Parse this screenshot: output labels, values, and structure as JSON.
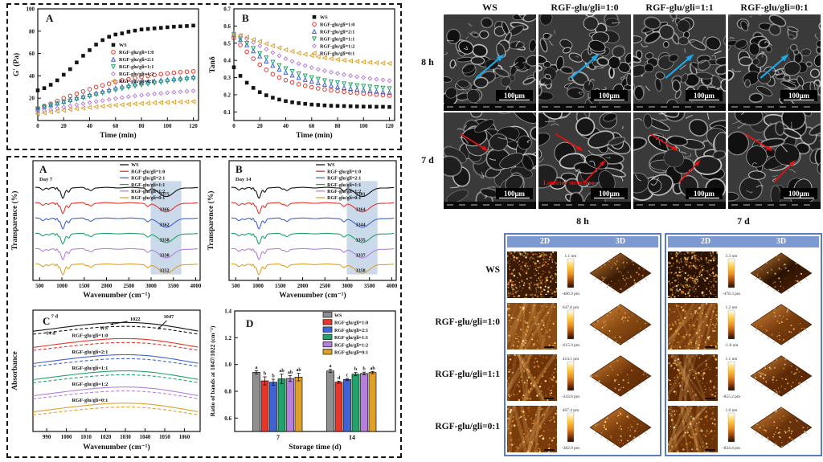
{
  "colors": {
    "ws": "#141414",
    "r10": "#e4362b",
    "r21": "#3f63d2",
    "r11": "#23a36b",
    "r12": "#b77fdc",
    "r01": "#dfa02a",
    "ws_bar": "#8f8f8f",
    "ftir_highlight": "#b9cde4",
    "sem_arrow_8h": "#1ba7e8",
    "sem_arrow_7d": "#e21212",
    "sem_annotation": "#e21212",
    "afm_header_bg": "#7d99d1",
    "afm_border": "#5c7bc0"
  },
  "sem": {
    "col_headers": [
      "WS",
      "RGF-glu/gli=1:0",
      "RGF-glu/gli=1:1",
      "RGF-glu/gli=0:1"
    ],
    "row_labels": [
      "8 h",
      "7 d"
    ],
    "scale_bar_label": "100μm",
    "annotation": "Laminar structure"
  },
  "afm": {
    "group_labels": [
      "8 h",
      "7 d"
    ],
    "col_headers": [
      "2D",
      "3D"
    ],
    "row_labels": [
      "WS",
      "RGF-glu/gli=1:0",
      "RGF-glu/gli=1:1",
      "RGF-glu/gli=0:1"
    ],
    "scales_8h": [
      {
        "top": "1.1 nm",
        "bottom": "-486.9 pm"
      },
      {
        "top": "647.8 pm",
        "bottom": "-615.9 pm"
      },
      {
        "top": "414.1 pm",
        "bottom": "-343.6 pm"
      },
      {
        "top": "407.4 pm",
        "bottom": "-382.9 pm"
      }
    ],
    "scales_7d": [
      {
        "top": "3.3 nm",
        "bottom": "-478.3 pm"
      },
      {
        "top": "1.2 nm",
        "bottom": "-1.8 nm"
      },
      {
        "top": "1.1 nm",
        "bottom": "-855.2 pm"
      },
      {
        "top": "1.0 nm",
        "bottom": "-834.4 pm"
      }
    ]
  },
  "chart_data": [
    {
      "id": "rheoA",
      "type": "scatter",
      "panel_label": "A",
      "xlabel": "Time (min)",
      "ylabel": "G' (Pa)",
      "xlim": [
        0,
        124
      ],
      "ylim": [
        0,
        100
      ],
      "xticks": [
        0,
        20,
        40,
        60,
        80,
        100,
        120
      ],
      "xtick_labels": [
        "0",
        "20",
        "40",
        "60",
        "80",
        "100",
        "120"
      ],
      "yticks": [
        20,
        40,
        60,
        80,
        100
      ],
      "ytick_labels": [
        "20",
        "40",
        "60",
        "80",
        "100"
      ],
      "x_start": 0,
      "x_step": 5,
      "legend": {
        "x": 0.47,
        "y": 0.28
      },
      "series": [
        {
          "name": "WS",
          "marker": "square",
          "colorKey": "ws",
          "values": [
            27,
            29,
            32,
            36,
            41,
            46,
            52,
            58,
            63,
            68,
            72,
            75,
            77,
            78,
            79.5,
            80.5,
            81.5,
            82,
            82.5,
            83,
            83.5,
            84,
            84.3,
            84.6,
            85
          ]
        },
        {
          "name": "RGF-glu/gli=1:0",
          "marker": "circle",
          "colorKey": "r10",
          "values": [
            11,
            13,
            15,
            17.5,
            20,
            22,
            24,
            26,
            28,
            30,
            31.5,
            33,
            34.5,
            36,
            37,
            38,
            39,
            40,
            40.8,
            41.5,
            42.2,
            42.8,
            43.3,
            43.7,
            44
          ]
        },
        {
          "name": "RGF-glu/gli=2:1",
          "marker": "triangle-up",
          "colorKey": "r21",
          "values": [
            11,
            12.5,
            14,
            15.5,
            17,
            18.5,
            20,
            21.5,
            23,
            24.5,
            26,
            27.5,
            29,
            30.3,
            31.5,
            32.6,
            33.6,
            34.5,
            35.3,
            36,
            36.7,
            37.3,
            37.8,
            38.4,
            39
          ]
        },
        {
          "name": "RGF-glu/gli=1:1",
          "marker": "triangle-down",
          "colorKey": "r11",
          "values": [
            10.5,
            12,
            13.4,
            14.8,
            16.2,
            17.6,
            19,
            20.4,
            21.8,
            23.2,
            24.6,
            26,
            27.3,
            28.5,
            29.7,
            30.8,
            31.8,
            32.7,
            33.5,
            34.3,
            35,
            35.7,
            36.3,
            37,
            37.6
          ]
        },
        {
          "name": "RGF-glu/gli=1:2",
          "marker": "diamond",
          "colorKey": "r12",
          "values": [
            8,
            9,
            10,
            11,
            12,
            13,
            14,
            15,
            16,
            17,
            17.9,
            18.8,
            19.7,
            20.5,
            21.3,
            22,
            22.7,
            23.3,
            23.9,
            24.4,
            24.9,
            25.4,
            25.8,
            26.2,
            26.6
          ]
        },
        {
          "name": "RGF-glu/gli=0:1",
          "marker": "triangle-left",
          "colorKey": "r01",
          "values": [
            6,
            6.8,
            7.6,
            8.4,
            9.1,
            9.8,
            10.5,
            11.1,
            11.7,
            12.3,
            12.8,
            13.3,
            13.8,
            14.2,
            14.6,
            15,
            15.3,
            15.6,
            15.9,
            16.1,
            16.3,
            16.5,
            16.7,
            16.8,
            17
          ]
        }
      ]
    },
    {
      "id": "rheoB",
      "type": "scatter",
      "panel_label": "B",
      "xlabel": "Time (min)",
      "ylabel": "Tanδ",
      "xlim": [
        0,
        124
      ],
      "ylim": [
        0.05,
        0.7
      ],
      "xticks": [
        0,
        20,
        40,
        60,
        80,
        100,
        120
      ],
      "xtick_labels": [
        "0",
        "20",
        "40",
        "60",
        "80",
        "100",
        "120"
      ],
      "yticks": [
        0.1,
        0.2,
        0.3,
        0.4,
        0.5,
        0.6,
        0.7
      ],
      "ytick_labels": [
        "0.1",
        "0.2",
        "0.3",
        "0.4",
        "0.5",
        "0.6",
        "0.7"
      ],
      "x_start": 0,
      "x_step": 5,
      "legend": {
        "x": 0.5,
        "y": 0.03
      },
      "series": [
        {
          "name": "WS",
          "marker": "square",
          "colorKey": "ws",
          "values": [
            0.36,
            0.31,
            0.27,
            0.24,
            0.215,
            0.197,
            0.183,
            0.172,
            0.163,
            0.156,
            0.151,
            0.147,
            0.143,
            0.141,
            0.138,
            0.136,
            0.135,
            0.134,
            0.133,
            0.132,
            0.131,
            0.131,
            0.13,
            0.13,
            0.129
          ]
        },
        {
          "name": "RGF-glu/gli=1:0",
          "marker": "circle",
          "colorKey": "r10",
          "values": [
            0.53,
            0.49,
            0.45,
            0.41,
            0.375,
            0.345,
            0.32,
            0.3,
            0.285,
            0.272,
            0.261,
            0.252,
            0.244,
            0.237,
            0.231,
            0.226,
            0.221,
            0.217,
            0.213,
            0.21,
            0.207,
            0.204,
            0.201,
            0.198,
            0.195
          ]
        },
        {
          "name": "RGF-glu/gli=2:1",
          "marker": "triangle-up",
          "colorKey": "r21",
          "values": [
            0.55,
            0.52,
            0.49,
            0.455,
            0.425,
            0.395,
            0.37,
            0.348,
            0.33,
            0.314,
            0.3,
            0.288,
            0.277,
            0.268,
            0.26,
            0.253,
            0.246,
            0.241,
            0.236,
            0.231,
            0.227,
            0.223,
            0.219,
            0.216,
            0.213
          ]
        },
        {
          "name": "RGF-glu/gli=1:1",
          "marker": "triangle-down",
          "colorKey": "r11",
          "values": [
            0.55,
            0.525,
            0.5,
            0.47,
            0.44,
            0.415,
            0.39,
            0.37,
            0.352,
            0.336,
            0.322,
            0.31,
            0.3,
            0.291,
            0.283,
            0.276,
            0.27,
            0.264,
            0.259,
            0.254,
            0.25,
            0.246,
            0.242,
            0.239,
            0.236
          ]
        },
        {
          "name": "RGF-glu/gli=1:2",
          "marker": "diamond",
          "colorKey": "r12",
          "values": [
            0.56,
            0.545,
            0.525,
            0.505,
            0.485,
            0.465,
            0.445,
            0.427,
            0.41,
            0.395,
            0.381,
            0.369,
            0.358,
            0.348,
            0.339,
            0.331,
            0.324,
            0.317,
            0.311,
            0.305,
            0.3,
            0.295,
            0.29,
            0.286,
            0.282
          ]
        },
        {
          "name": "RGF-glu/gli=0:1",
          "marker": "triangle-left",
          "colorKey": "r01",
          "values": [
            0.55,
            0.545,
            0.535,
            0.522,
            0.51,
            0.497,
            0.485,
            0.473,
            0.462,
            0.452,
            0.443,
            0.435,
            0.428,
            0.421,
            0.415,
            0.41,
            0.405,
            0.401,
            0.397,
            0.394,
            0.391,
            0.388,
            0.386,
            0.384,
            0.382
          ]
        }
      ]
    },
    {
      "id": "ftirA",
      "type": "line",
      "panel_label": "A",
      "sub_label": "Day 7",
      "xlabel": "Wavenumber (cm⁻¹)",
      "ylabel": "Transparence (%)",
      "xlim": [
        350,
        4100
      ],
      "xticks": [
        500,
        1000,
        1500,
        2000,
        2500,
        3000,
        3500,
        4000
      ],
      "xtick_labels": [
        "500",
        "1000",
        "1500",
        "2000",
        "2500",
        "3000",
        "3500",
        "4000"
      ],
      "highlight_band": [
        2990,
        3680
      ],
      "series": [
        {
          "name": "WS",
          "colorKey": "ws"
        },
        {
          "name": "RGF-glu/gli=1:0",
          "colorKey": "r10"
        },
        {
          "name": "RGF-glu/gli=2:1",
          "colorKey": "r21"
        },
        {
          "name": "RGF-glu/gli=1:1",
          "colorKey": "r11"
        },
        {
          "name": "RGF-glu/gli=1:2",
          "colorKey": "r12"
        },
        {
          "name": "RGF-glu/gli=0:1",
          "colorKey": "r01"
        }
      ],
      "peak_labels": [
        "3375",
        "3366",
        "3362",
        "3358",
        "3330",
        "3352"
      ]
    },
    {
      "id": "ftirB",
      "type": "line",
      "panel_label": "B",
      "sub_label": "Day 14",
      "xlabel": "Wavenumber (cm⁻¹)",
      "ylabel": "Transparence (%)",
      "xlim": [
        350,
        4100
      ],
      "xticks": [
        500,
        1000,
        1500,
        2000,
        2500,
        3000,
        3500,
        4000
      ],
      "xtick_labels": [
        "500",
        "1000",
        "1500",
        "2000",
        "2500",
        "3000",
        "3500",
        "4000"
      ],
      "highlight_band": [
        2990,
        3680
      ],
      "series": [
        {
          "name": "WS",
          "colorKey": "ws"
        },
        {
          "name": "RGF-glu/gli=1:0",
          "colorKey": "r10"
        },
        {
          "name": "RGF-glu/gli=2:1",
          "colorKey": "r21"
        },
        {
          "name": "RGF-glu/gli=1:1",
          "colorKey": "r11"
        },
        {
          "name": "RGF-glu/gli=1:2",
          "colorKey": "r12"
        },
        {
          "name": "RGF-glu/gli=0:1",
          "colorKey": "r01"
        }
      ],
      "peak_labels": [
        "3381",
        "3364",
        "3344",
        "3335",
        "3337",
        "3358"
      ]
    },
    {
      "id": "absC",
      "type": "line",
      "panel_label": "C",
      "xlabel": "Wavenumber (cm⁻¹)",
      "ylabel": "Absorbance",
      "xlim": [
        983,
        1068
      ],
      "xticks": [
        990,
        1000,
        1010,
        1020,
        1030,
        1040,
        1050,
        1060
      ],
      "xtick_labels": [
        "990",
        "1000",
        "1010",
        "1020",
        "1030",
        "1040",
        "1050",
        "1060"
      ],
      "line_style_labels": [
        "7 d",
        "14 d"
      ],
      "band_annotations": [
        "1022",
        "1047"
      ],
      "series": [
        {
          "name": "WS",
          "colorKey": "ws"
        },
        {
          "name": "RGF-glu/gli=1:0",
          "colorKey": "r10"
        },
        {
          "name": "RGF-glu/gli=2:1",
          "colorKey": "r21"
        },
        {
          "name": "RGF-glu/gli=1:1",
          "colorKey": "r11"
        },
        {
          "name": "RGF-glu/gli=1:2",
          "colorKey": "r12"
        },
        {
          "name": "RGF-glu/gli=0:1",
          "colorKey": "r01"
        }
      ]
    },
    {
      "id": "barD",
      "type": "bar",
      "panel_label": "D",
      "xlabel": "Storage time (d)",
      "ylabel": "Ratio of bands at 1047/1022 (cm⁻¹)",
      "categories": [
        "7",
        "14"
      ],
      "ylim": [
        0.5,
        1.4
      ],
      "yticks": [
        0.6,
        0.8,
        1.0,
        1.2,
        1.4
      ],
      "ytick_labels": [
        "0.6",
        "0.8",
        "1.0",
        "1.2",
        "1.4"
      ],
      "series": [
        {
          "name": "WS",
          "colorKey": "ws_bar",
          "values": [
            0.942,
            0.952
          ],
          "errors": [
            0.012,
            0.012
          ]
        },
        {
          "name": "RGF-glu/gli=1:0",
          "colorKey": "r10",
          "values": [
            0.878,
            0.868
          ],
          "errors": [
            0.03,
            0.008
          ]
        },
        {
          "name": "RGF-glu/gli=2:1",
          "colorKey": "r21",
          "values": [
            0.868,
            0.888
          ],
          "errors": [
            0.022,
            0.008
          ]
        },
        {
          "name": "RGF-glu/gli=1:1",
          "colorKey": "r11",
          "values": [
            0.893,
            0.928
          ],
          "errors": [
            0.035,
            0.012
          ]
        },
        {
          "name": "RGF-glu/gli=1:2",
          "colorKey": "r12",
          "values": [
            0.896,
            0.933
          ],
          "errors": [
            0.022,
            0.01
          ]
        },
        {
          "name": "RGF-glu/gli=0:1",
          "colorKey": "r01",
          "values": [
            0.906,
            0.94
          ],
          "errors": [
            0.028,
            0.008
          ]
        }
      ],
      "sig_letters": [
        [
          "a",
          "b",
          "b",
          "ab",
          "ab",
          "ab"
        ],
        [
          "a",
          "d",
          "c",
          "b",
          "b",
          "ab"
        ]
      ]
    }
  ]
}
